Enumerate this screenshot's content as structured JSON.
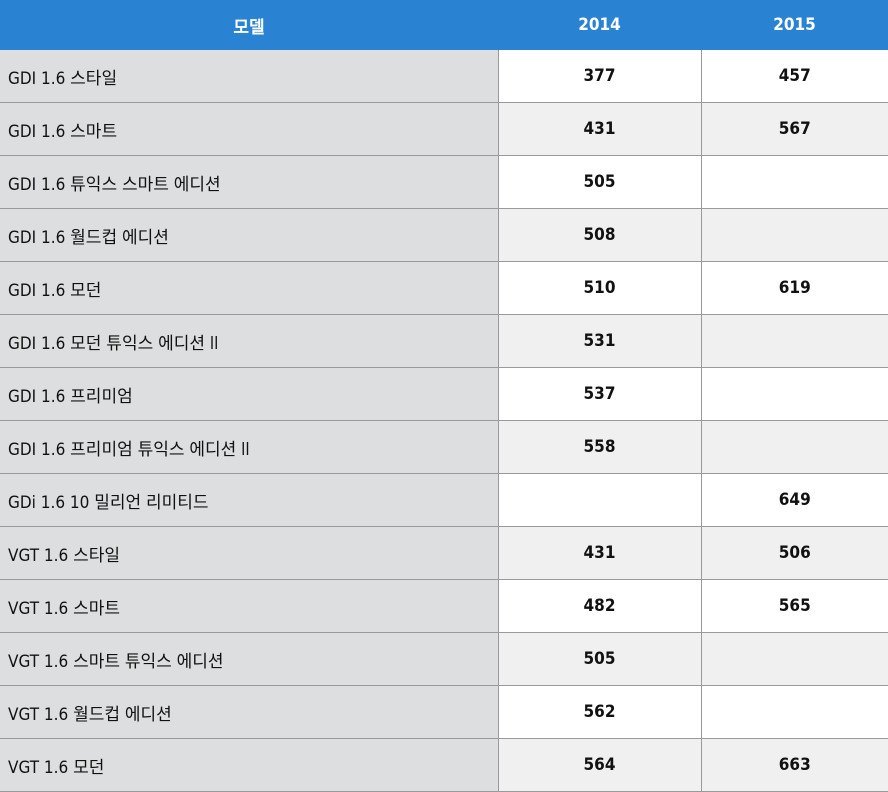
{
  "table": {
    "headers": [
      "모델",
      "2014",
      "2015"
    ],
    "rows": [
      {
        "model": "GDI 1.6 스타일",
        "y2014": "377",
        "y2015": "457"
      },
      {
        "model": "GDI 1.6 스마트",
        "y2014": "431",
        "y2015": "567"
      },
      {
        "model": "GDI 1.6 튜익스 스마트 에디션",
        "y2014": "505",
        "y2015": ""
      },
      {
        "model": "GDI 1.6 월드컵 에디션",
        "y2014": "508",
        "y2015": ""
      },
      {
        "model": "GDI 1.6 모던",
        "y2014": "510",
        "y2015": "619"
      },
      {
        "model": "GDI 1.6 모던 튜익스 에디션 ll",
        "y2014": "531",
        "y2015": ""
      },
      {
        "model": "GDI 1.6 프리미엄",
        "y2014": "537",
        "y2015": ""
      },
      {
        "model": "GDI 1.6 프리미엄 튜익스 에디션 ll",
        "y2014": "558",
        "y2015": ""
      },
      {
        "model": "GDi 1.6 10 밀리언 리미티드",
        "y2014": "",
        "y2015": "649"
      },
      {
        "model": "VGT 1.6 스타일",
        "y2014": "431",
        "y2015": "506"
      },
      {
        "model": "VGT 1.6 스마트",
        "y2014": "482",
        "y2015": "565"
      },
      {
        "model": "VGT 1.6 스마트 튜익스 에디션",
        "y2014": "505",
        "y2015": ""
      },
      {
        "model": "VGT 1.6 월드컵 에디션",
        "y2014": "562",
        "y2015": ""
      },
      {
        "model": "VGT 1.6 모던",
        "y2014": "564",
        "y2015": "663"
      }
    ]
  }
}
